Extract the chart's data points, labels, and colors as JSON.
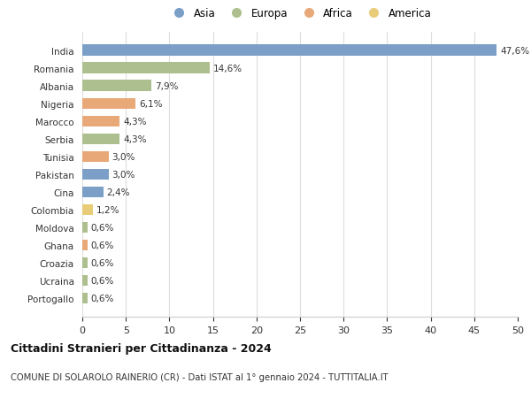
{
  "categories": [
    "India",
    "Romania",
    "Albania",
    "Nigeria",
    "Marocco",
    "Serbia",
    "Tunisia",
    "Pakistan",
    "Cina",
    "Colombia",
    "Moldova",
    "Ghana",
    "Croazia",
    "Ucraina",
    "Portogallo"
  ],
  "values": [
    47.6,
    14.6,
    7.9,
    6.1,
    4.3,
    4.3,
    3.0,
    3.0,
    2.4,
    1.2,
    0.6,
    0.6,
    0.6,
    0.6,
    0.6
  ],
  "labels": [
    "47,6%",
    "14,6%",
    "7,9%",
    "6,1%",
    "4,3%",
    "4,3%",
    "3,0%",
    "3,0%",
    "2,4%",
    "1,2%",
    "0,6%",
    "0,6%",
    "0,6%",
    "0,6%",
    "0,6%"
  ],
  "continents": [
    "Asia",
    "Europa",
    "Europa",
    "Africa",
    "Africa",
    "Europa",
    "Africa",
    "Asia",
    "Asia",
    "America",
    "Europa",
    "Africa",
    "Europa",
    "Europa",
    "Europa"
  ],
  "colors": {
    "Asia": "#7b9fc7",
    "Europa": "#adbf8e",
    "Africa": "#e8a878",
    "America": "#e8cc78"
  },
  "legend_labels": [
    "Asia",
    "Europa",
    "Africa",
    "America"
  ],
  "legend_colors": [
    "#7b9fc7",
    "#adbf8e",
    "#e8a878",
    "#e8cc78"
  ],
  "title": "Cittadini Stranieri per Cittadinanza - 2024",
  "subtitle": "COMUNE DI SOLAROLO RAINERIO (CR) - Dati ISTAT al 1° gennaio 2024 - TUTTITALIA.IT",
  "xlim": [
    0,
    50
  ],
  "xticks": [
    0,
    5,
    10,
    15,
    20,
    25,
    30,
    35,
    40,
    45,
    50
  ],
  "background_color": "#ffffff",
  "grid_color": "#dddddd"
}
